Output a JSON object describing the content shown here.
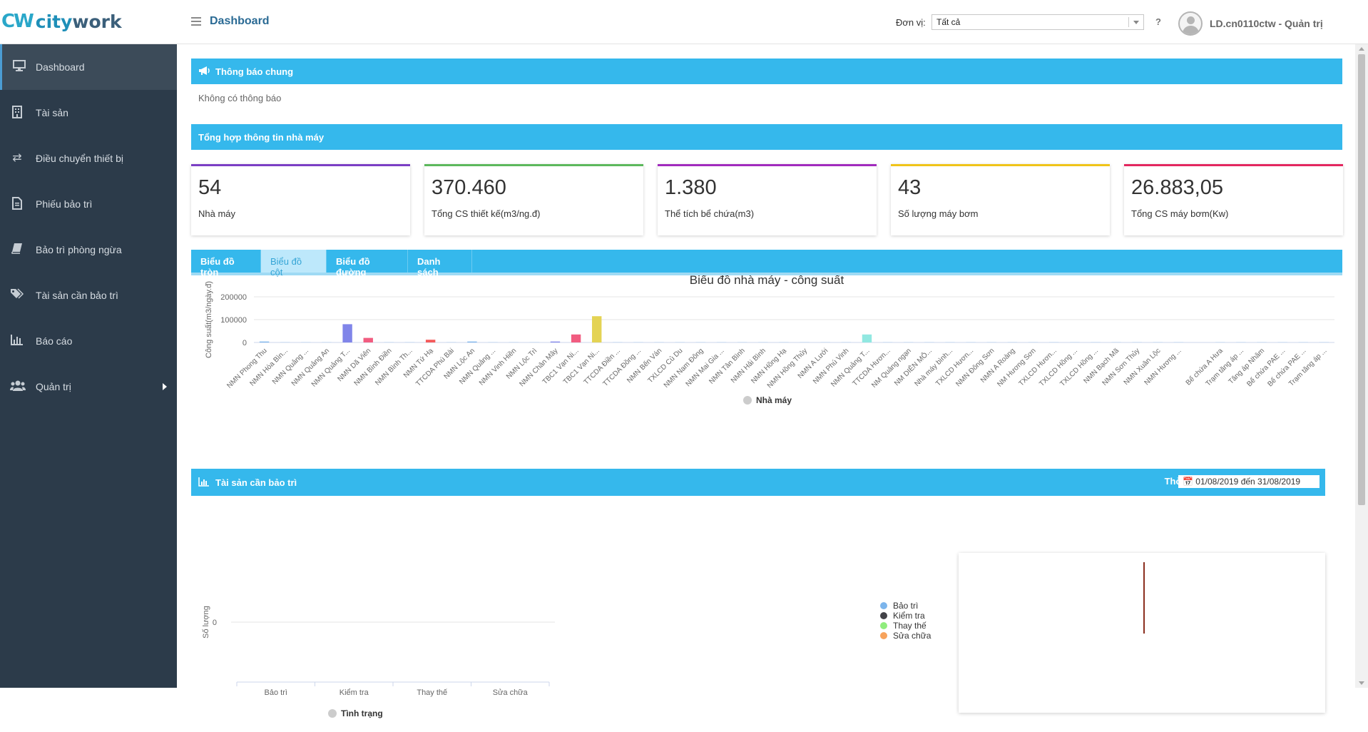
{
  "brand": {
    "cw": "CW",
    "name_part1": "city",
    "name_part2": "work"
  },
  "header": {
    "title": "Dashboard",
    "unit_label": "Đơn vị:",
    "unit_value": "Tất cả",
    "help": "?",
    "user": "LD.cn0110ctw - Quản trị"
  },
  "sidebar": {
    "items": [
      {
        "label": "Dashboard",
        "icon": "monitor-icon"
      },
      {
        "label": "Tài sản",
        "icon": "building-icon"
      },
      {
        "label": "Điều chuyển thiết bị",
        "icon": "exchange-icon"
      },
      {
        "label": "Phiếu bảo trì",
        "icon": "document-icon"
      },
      {
        "label": "Bảo trì phòng ngừa",
        "icon": "book-icon"
      },
      {
        "label": "Tài sản cần bảo trì",
        "icon": "tags-icon"
      },
      {
        "label": "Báo cáo",
        "icon": "bar-chart-icon"
      },
      {
        "label": "Quản trị",
        "icon": "users-icon"
      }
    ]
  },
  "notice": {
    "title": "Thông báo chung",
    "empty": "Không có thông báo"
  },
  "summary": {
    "title": "Tổng hợp thông tin nhà máy",
    "stats": [
      {
        "value": "54",
        "label": "Nhà máy",
        "color": "#7b3fc4"
      },
      {
        "value": "370.460",
        "label": "Tổng CS thiết kế(m3/ng.đ)",
        "color": "#5cb85c"
      },
      {
        "value": "1.380",
        "label": "Thể tích bể chứa(m3)",
        "color": "#a12bbd"
      },
      {
        "value": "43",
        "label": "Số lượng máy bơm",
        "color": "#f0c419"
      },
      {
        "value": "26.883,05",
        "label": "Tổng CS máy bơm(Kw)",
        "color": "#e3275f"
      }
    ]
  },
  "tabs": [
    "Biểu đồ tròn",
    "Biểu đồ cột",
    "Biểu đồ đường",
    "Danh sách"
  ],
  "active_tab": 1,
  "maintenance": {
    "title": "Tài sản cần bảo trì",
    "time_label": "Thời gian:",
    "time_range": "01/08/2019 đến 31/08/2019",
    "legend": [
      {
        "label": "Bảo trì",
        "color": "#7cb5ec"
      },
      {
        "label": "Kiểm tra",
        "color": "#434348"
      },
      {
        "label": "Thay thế",
        "color": "#90ed7d"
      },
      {
        "label": "Sửa chữa",
        "color": "#f7a35c"
      }
    ]
  },
  "chart_data": [
    {
      "type": "bar",
      "title": "Biểu đồ nhà máy - công suất",
      "ylabel": "Công suất(m3/ngày.đ)",
      "ylim": [
        0,
        200000
      ],
      "yticks": [
        "0",
        "100000",
        "200000"
      ],
      "legend": "Nhà máy",
      "categories": [
        "NMN Phong Thu",
        "NMN Hòa Bìn...",
        "NMN Quảng ...",
        "NMN Quảng An",
        "NMN Quảng T...",
        "NMN Dã Viên",
        "NMN Bình Điền",
        "NMN Bình Th...",
        "NMN Tứ Hạ",
        "TTCDA Phú Bài",
        "NMN Lộc An",
        "NMN Quảng ...",
        "NMN Vinh Hiền",
        "NMN Lộc Trì",
        "NMN Chân Mây",
        "TBC1 Vạn Ni...",
        "TBC1 Vạn Ni...",
        "TTCDA Điền ...",
        "TTCDA Đồng ...",
        "NMN Bến Ván",
        "TXLCD Củ Du",
        "NMN Nam Đông",
        "NMN Mai Gia ...",
        "NMN Tân Bình",
        "NMN Hải Bình",
        "NMN Hồng Hạ",
        "NMN Hồng Thủy",
        "NMN A Lưới",
        "NMN Phú Vinh",
        "NMN Quảng T...",
        "TTCDA Hươn...",
        "NM Quảng ngạn",
        "NM DIÊN MÔ...",
        "Nhà máy bình...",
        "TXLCD Hươn...",
        "NMN Đông Sơn",
        "NMN A Roàng",
        "NM Hương Sơn",
        "TXLCD Hươn...",
        "TXLCD Hồng ...",
        "TXLCD Hồng ...",
        "NMN Bạch Mã",
        "NMN Sơn Thủy",
        "NMN Xuân Lộc",
        "NMN Hương ...",
        "",
        "Bể chứa A Hưa",
        "Trạm tăng áp ...",
        "Tăng áp Nhâm",
        "Bể chứa PAE ...",
        "Bể chứa PAE ...",
        "Trạm tăng áp ..."
      ],
      "values": [
        4000,
        600,
        600,
        600,
        80000,
        20000,
        600,
        600,
        12000,
        600,
        4000,
        600,
        600,
        600,
        4000,
        35000,
        115000,
        600,
        600,
        600,
        600,
        600,
        600,
        600,
        600,
        600,
        600,
        600,
        600,
        35000,
        600,
        600,
        600,
        600,
        600,
        600,
        600,
        600,
        600,
        600,
        600,
        600,
        600,
        600,
        600,
        0,
        600,
        600,
        600,
        600,
        600,
        600
      ],
      "colors": [
        "#7cb5ec",
        "#7cb5ec",
        "#7cb5ec",
        "#7cb5ec",
        "#8085e9",
        "#f15c80",
        "#7cb5ec",
        "#7cb5ec",
        "#f45b5b",
        "#7cb5ec",
        "#7cb5ec",
        "#7cb5ec",
        "#7cb5ec",
        "#7cb5ec",
        "#8085e9",
        "#f15c80",
        "#e4d354",
        "#7cb5ec",
        "#7cb5ec",
        "#7cb5ec",
        "#7cb5ec",
        "#7cb5ec",
        "#7cb5ec",
        "#7cb5ec",
        "#7cb5ec",
        "#7cb5ec",
        "#7cb5ec",
        "#7cb5ec",
        "#7cb5ec",
        "#91e8e1",
        "#7cb5ec",
        "#7cb5ec",
        "#7cb5ec",
        "#7cb5ec",
        "#7cb5ec",
        "#7cb5ec",
        "#7cb5ec",
        "#7cb5ec",
        "#7cb5ec",
        "#7cb5ec",
        "#7cb5ec",
        "#7cb5ec",
        "#7cb5ec",
        "#7cb5ec",
        "#7cb5ec",
        "#7cb5ec",
        "#7cb5ec",
        "#7cb5ec",
        "#7cb5ec",
        "#7cb5ec",
        "#7cb5ec",
        "#7cb5ec"
      ]
    },
    {
      "type": "bar",
      "title": "",
      "ylabel": "Số lượng",
      "yticks": [
        "0"
      ],
      "legend": "Tình trạng",
      "categories": [
        "Bảo trì",
        "Kiểm tra",
        "Thay thế",
        "Sửa chữa"
      ],
      "values": [
        0,
        0,
        0,
        0
      ]
    }
  ]
}
